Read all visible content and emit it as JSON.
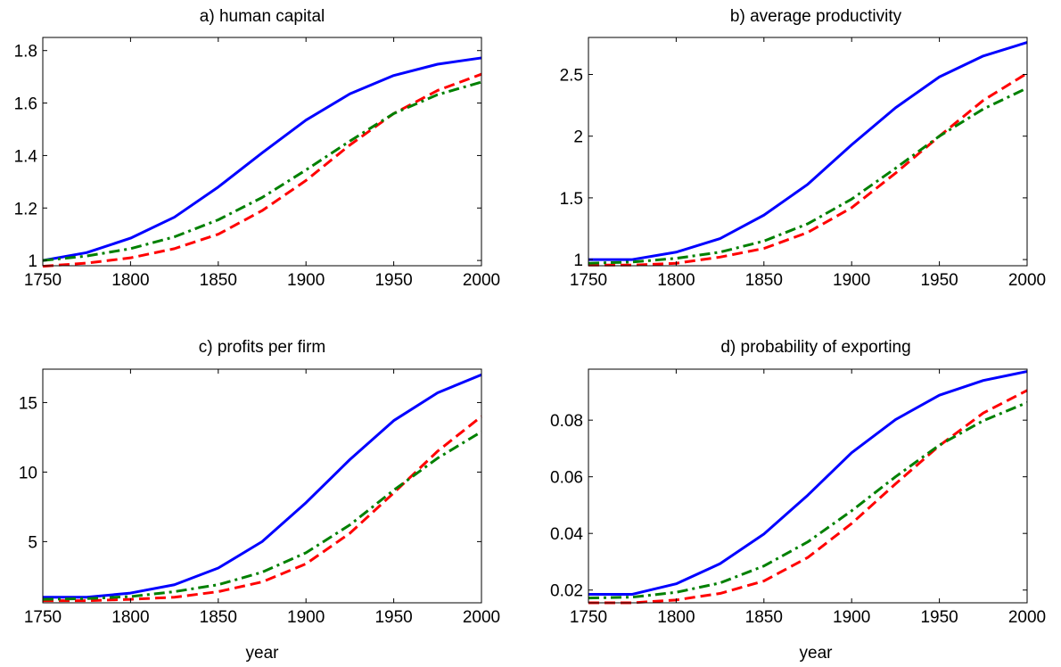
{
  "chart_data": [
    {
      "type": "line",
      "title": "a) human capital",
      "xlabel": "",
      "ylabel": "",
      "xlim": [
        1750,
        2000
      ],
      "ylim": [
        0.98,
        1.85
      ],
      "grid": false,
      "xticks": [
        "1750",
        "1800",
        "1850",
        "1900",
        "1950",
        "2000"
      ],
      "yticks": [
        "1",
        "1.2",
        "1.4",
        "1.6",
        "1.8"
      ],
      "x": [
        1750,
        1775,
        1800,
        1825,
        1850,
        1875,
        1900,
        1925,
        1950,
        1975,
        2000
      ],
      "series": [
        {
          "color": "#0000ff",
          "dash": "solid",
          "values": [
            1.0,
            1.03,
            1.085,
            1.165,
            1.28,
            1.41,
            1.535,
            1.635,
            1.705,
            1.748,
            1.772
          ]
        },
        {
          "color": "#ff0000",
          "dash": "dashed",
          "values": [
            0.978,
            0.99,
            1.01,
            1.045,
            1.1,
            1.19,
            1.305,
            1.44,
            1.56,
            1.648,
            1.71
          ]
        },
        {
          "color": "#008000",
          "dash": "dashdot",
          "values": [
            1.0,
            1.017,
            1.045,
            1.09,
            1.155,
            1.24,
            1.345,
            1.455,
            1.56,
            1.632,
            1.68
          ]
        }
      ]
    },
    {
      "type": "line",
      "title": "b) average productivity",
      "xlabel": "",
      "ylabel": "",
      "xlim": [
        1750,
        2000
      ],
      "ylim": [
        0.95,
        2.8
      ],
      "grid": false,
      "xticks": [
        "1750",
        "1800",
        "1850",
        "1900",
        "1950",
        "2000"
      ],
      "yticks": [
        "1",
        "1.5",
        "2",
        "2.5"
      ],
      "x": [
        1750,
        1775,
        1800,
        1825,
        1850,
        1875,
        1900,
        1925,
        1950,
        1975,
        2000
      ],
      "series": [
        {
          "color": "#0000ff",
          "dash": "solid",
          "values": [
            1.0,
            1.0,
            1.06,
            1.17,
            1.36,
            1.61,
            1.93,
            2.23,
            2.48,
            2.65,
            2.76
          ]
        },
        {
          "color": "#ff0000",
          "dash": "dashed",
          "values": [
            0.955,
            0.955,
            0.97,
            1.02,
            1.09,
            1.22,
            1.42,
            1.7,
            2.0,
            2.29,
            2.51
          ]
        },
        {
          "color": "#008000",
          "dash": "dashdot",
          "values": [
            0.97,
            0.98,
            1.01,
            1.06,
            1.15,
            1.29,
            1.49,
            1.74,
            2.0,
            2.22,
            2.39
          ]
        }
      ]
    },
    {
      "type": "line",
      "title": "c) profits per firm",
      "xlabel": "year",
      "ylabel": "",
      "xlim": [
        1750,
        2000
      ],
      "ylim": [
        0.6,
        17.4
      ],
      "grid": false,
      "xticks": [
        "1750",
        "1800",
        "1850",
        "1900",
        "1950",
        "2000"
      ],
      "yticks": [
        "5",
        "10",
        "15"
      ],
      "x": [
        1750,
        1775,
        1800,
        1825,
        1850,
        1875,
        1900,
        1925,
        1950,
        1975,
        2000
      ],
      "series": [
        {
          "color": "#0000ff",
          "dash": "solid",
          "values": [
            1.0,
            1.0,
            1.3,
            1.9,
            3.1,
            5.0,
            7.8,
            10.9,
            13.7,
            15.7,
            17.0
          ]
        },
        {
          "color": "#ff0000",
          "dash": "dashed",
          "values": [
            0.75,
            0.75,
            0.85,
            1.0,
            1.4,
            2.1,
            3.4,
            5.6,
            8.5,
            11.5,
            14.0
          ]
        },
        {
          "color": "#008000",
          "dash": "dashdot",
          "values": [
            0.85,
            0.9,
            1.05,
            1.4,
            1.9,
            2.8,
            4.2,
            6.2,
            8.7,
            11.0,
            12.9
          ]
        }
      ]
    },
    {
      "type": "line",
      "title": "d) probability of exporting",
      "xlabel": "year",
      "ylabel": "",
      "xlim": [
        1750,
        2000
      ],
      "ylim": [
        0.0155,
        0.098
      ],
      "grid": false,
      "xticks": [
        "1750",
        "1800",
        "1850",
        "1900",
        "1950",
        "2000"
      ],
      "yticks": [
        "0.02",
        "0.04",
        "0.06",
        "0.08"
      ],
      "x": [
        1750,
        1775,
        1800,
        1825,
        1850,
        1875,
        1900,
        1925,
        1950,
        1975,
        2000
      ],
      "series": [
        {
          "color": "#0000ff",
          "dash": "solid",
          "values": [
            0.0185,
            0.0185,
            0.0222,
            0.0293,
            0.0398,
            0.0535,
            0.0685,
            0.0802,
            0.0888,
            0.094,
            0.0972
          ]
        },
        {
          "color": "#ff0000",
          "dash": "dashed",
          "values": [
            0.0155,
            0.0155,
            0.0165,
            0.0188,
            0.0232,
            0.0315,
            0.0435,
            0.0575,
            0.071,
            0.0825,
            0.0905
          ]
        },
        {
          "color": "#008000",
          "dash": "dashdot",
          "values": [
            0.0172,
            0.0175,
            0.0192,
            0.0225,
            0.0285,
            0.037,
            0.048,
            0.06,
            0.0712,
            0.0798,
            0.0862
          ]
        }
      ]
    }
  ]
}
